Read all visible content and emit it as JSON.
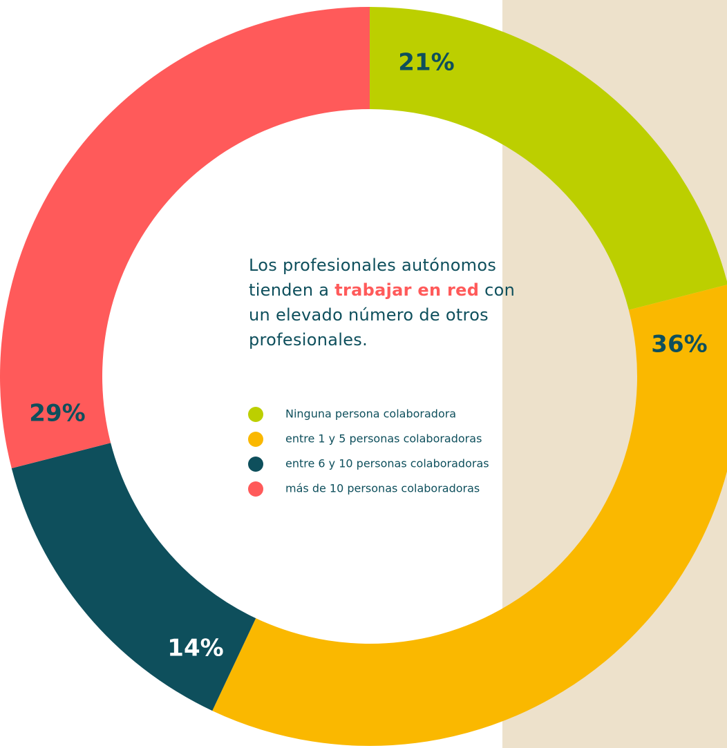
{
  "chart_data": {
    "type": "donut",
    "annotation": [
      "Los profesionales autónomos tienden a ",
      "trabajar en red",
      " con un elevado número de otros profesionales."
    ],
    "categories": [
      "Ninguna persona colaboradora",
      "entre 1 y 5 personas colaboradoras",
      "entre 6 y 10 personas colaboradoras",
      "más de 10 personas colaboradoras"
    ],
    "values": [
      21,
      36,
      14,
      29
    ],
    "value_labels": [
      "21%",
      "36%",
      "14%",
      "29%"
    ],
    "colors": [
      "#bccf00",
      "#fab800",
      "#0e4f5c",
      "#ff5a5a"
    ]
  }
}
